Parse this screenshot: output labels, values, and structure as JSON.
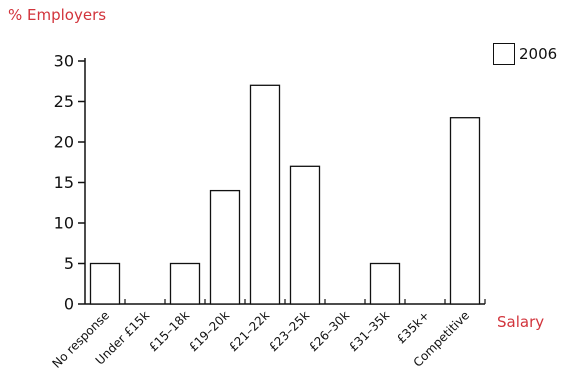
{
  "chart_data": {
    "type": "bar",
    "ylabel": "% Employers",
    "xlabel": "Salary",
    "categories": [
      "No response",
      "Under £15k",
      "£15–18k",
      "£19–20k",
      "£21–22k",
      "£23–25k",
      "£26–30k",
      "£31–35k",
      "£35k+",
      "Competitive"
    ],
    "series": [
      {
        "name": "2006",
        "values": [
          5,
          0,
          5,
          14,
          27,
          17,
          0,
          5,
          0,
          23
        ]
      }
    ],
    "ylim": [
      0,
      30
    ],
    "yticks": [
      0,
      5,
      10,
      15,
      20,
      25,
      30
    ],
    "grid": false,
    "legend_position": "top-right"
  },
  "colors": {
    "label_red": "#d2343c",
    "bar_fill": "#ffffff",
    "bar_stroke": "#111111",
    "axis": "#111111"
  }
}
